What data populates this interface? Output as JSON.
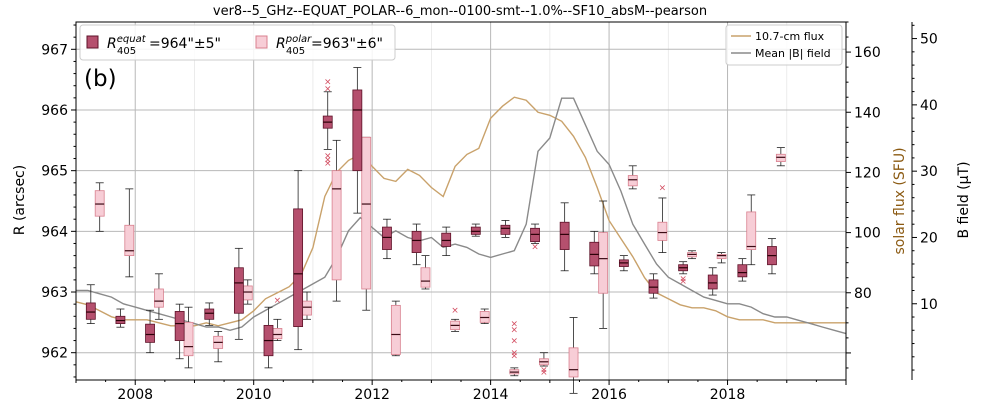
{
  "chart_data": {
    "type": "box",
    "title": "ver8--5_GHz--EQUAT_POLAR--6_mon--0100-smt--1.0%--SF10_absM--pearson",
    "panel_label": "(b)",
    "xlabel": "",
    "ylabel": "R (arcsec)",
    "ylabel_flux": "solar flux (SFU)",
    "ylabel_bfield": "B field (µT)",
    "xlim": [
      2007.0,
      2020.0
    ],
    "ylim": [
      961.55,
      967.45
    ],
    "flux_lim": [
      51.0,
      170.0
    ],
    "bfield_lim": [
      -1.5,
      52.5
    ],
    "x_ticks": [
      2008,
      2010,
      2012,
      2014,
      2016,
      2018
    ],
    "x_tick_labels": [
      "2008",
      "2010",
      "2012",
      "2014",
      "2016",
      "2018"
    ],
    "y_ticks": [
      962,
      963,
      964,
      965,
      966,
      967
    ],
    "y_tick_labels": [
      "962",
      "963",
      "964",
      "965",
      "966",
      "967"
    ],
    "flux_ticks": [
      80,
      100,
      120,
      140,
      160
    ],
    "flux_tick_labels": [
      "80",
      "100",
      "120",
      "140",
      "160"
    ],
    "bfield_ticks": [
      10,
      20,
      30,
      40,
      50
    ],
    "bfield_tick_labels": [
      "10",
      "20",
      "30",
      "40",
      "50"
    ],
    "legend_boxes": {
      "equat": {
        "prefix": "R",
        "super": "equat",
        "sub": "405",
        "value": "=964\"±5\""
      },
      "polar": {
        "prefix": "R",
        "super": "polar",
        "sub": "405",
        "value": "=963\"±6\""
      }
    },
    "legend_lines": [
      {
        "name": "10.7-cm flux",
        "color": "#c9a26b"
      },
      {
        "name": "Mean |B| field",
        "color": "#8a8a8a"
      }
    ],
    "colors": {
      "equat_fill": "#b5506e",
      "equat_edge": "#5e1228",
      "equat_median": "#2a0008",
      "polar_fill": "#f7cdd6",
      "polar_edge": "#d9808f",
      "polar_median": "#3a0a14",
      "flux_line": "#c9a26b",
      "bfield_line": "#8a8a8a",
      "flux_axis": "#8b5a12",
      "outlier": "#d24a5e"
    },
    "series_equat": [
      {
        "x": 2007.25,
        "whislo": 962.48,
        "q1": 962.55,
        "med": 962.67,
        "q3": 962.82,
        "whishi": 963.12,
        "fliers": []
      },
      {
        "x": 2007.75,
        "whislo": 962.42,
        "q1": 962.48,
        "med": 962.53,
        "q3": 962.6,
        "whishi": 962.72,
        "fliers": []
      },
      {
        "x": 2008.25,
        "whislo": 962.0,
        "q1": 962.17,
        "med": 962.3,
        "q3": 962.47,
        "whishi": 962.7,
        "fliers": []
      },
      {
        "x": 2008.75,
        "whislo": 961.9,
        "q1": 962.2,
        "med": 962.48,
        "q3": 962.68,
        "whishi": 962.8,
        "fliers": []
      },
      {
        "x": 2009.25,
        "whislo": 962.45,
        "q1": 962.55,
        "med": 962.65,
        "q3": 962.72,
        "whishi": 962.82,
        "fliers": []
      },
      {
        "x": 2009.75,
        "whislo": 962.22,
        "q1": 962.65,
        "med": 963.15,
        "q3": 963.4,
        "whishi": 963.72,
        "fliers": []
      },
      {
        "x": 2010.25,
        "whislo": 961.75,
        "q1": 961.95,
        "med": 962.2,
        "q3": 962.45,
        "whishi": 962.75,
        "fliers": []
      },
      {
        "x": 2010.75,
        "whislo": 962.05,
        "q1": 962.43,
        "med": 963.3,
        "q3": 964.37,
        "whishi": 965.0,
        "fliers": []
      },
      {
        "x": 2011.25,
        "whislo": 965.35,
        "q1": 965.7,
        "med": 965.8,
        "q3": 965.9,
        "whishi": 966.3,
        "fliers": [
          966.47,
          966.35,
          965.25,
          965.18,
          965.13
        ]
      },
      {
        "x": 2011.75,
        "whislo": 964.3,
        "q1": 965.0,
        "med": 966.0,
        "q3": 966.33,
        "whishi": 966.7,
        "fliers": []
      },
      {
        "x": 2012.25,
        "whislo": 963.55,
        "q1": 963.7,
        "med": 963.9,
        "q3": 964.07,
        "whishi": 964.2,
        "fliers": []
      },
      {
        "x": 2012.75,
        "whislo": 963.45,
        "q1": 963.65,
        "med": 963.85,
        "q3": 964.0,
        "whishi": 964.12,
        "fliers": []
      },
      {
        "x": 2013.25,
        "whislo": 963.6,
        "q1": 963.75,
        "med": 963.85,
        "q3": 963.97,
        "whishi": 964.07,
        "fliers": []
      },
      {
        "x": 2013.75,
        "whislo": 963.92,
        "q1": 963.95,
        "med": 964.0,
        "q3": 964.07,
        "whishi": 964.12,
        "fliers": []
      },
      {
        "x": 2014.25,
        "whislo": 963.9,
        "q1": 963.95,
        "med": 964.05,
        "q3": 964.1,
        "whishi": 964.18,
        "fliers": []
      },
      {
        "x": 2014.75,
        "whislo": 963.8,
        "q1": 963.83,
        "med": 963.95,
        "q3": 964.05,
        "whishi": 964.12,
        "fliers": [
          963.75
        ]
      },
      {
        "x": 2015.25,
        "whislo": 963.35,
        "q1": 963.7,
        "med": 963.95,
        "q3": 964.15,
        "whishi": 964.47,
        "fliers": []
      },
      {
        "x": 2015.75,
        "whislo": 963.3,
        "q1": 963.43,
        "med": 963.62,
        "q3": 963.82,
        "whishi": 964.0,
        "fliers": []
      },
      {
        "x": 2016.25,
        "whislo": 963.35,
        "q1": 963.42,
        "med": 963.48,
        "q3": 963.53,
        "whishi": 963.6,
        "fliers": []
      },
      {
        "x": 2016.75,
        "whislo": 962.9,
        "q1": 962.98,
        "med": 963.08,
        "q3": 963.2,
        "whishi": 963.3,
        "fliers": []
      },
      {
        "x": 2017.25,
        "whislo": 963.3,
        "q1": 963.35,
        "med": 963.4,
        "q3": 963.45,
        "whishi": 963.5,
        "fliers": [
          963.22,
          963.18
        ]
      },
      {
        "x": 2017.75,
        "whislo": 962.95,
        "q1": 963.05,
        "med": 963.15,
        "q3": 963.28,
        "whishi": 963.4,
        "fliers": []
      },
      {
        "x": 2018.25,
        "whislo": 963.18,
        "q1": 963.25,
        "med": 963.32,
        "q3": 963.45,
        "whishi": 963.55,
        "fliers": []
      },
      {
        "x": 2018.75,
        "whislo": 963.3,
        "q1": 963.45,
        "med": 963.6,
        "q3": 963.75,
        "whishi": 963.88,
        "fliers": []
      }
    ],
    "series_polar": [
      {
        "x": 2007.4,
        "whislo": 964.0,
        "q1": 964.25,
        "med": 964.45,
        "q3": 964.67,
        "whishi": 964.8,
        "fliers": []
      },
      {
        "x": 2007.9,
        "whislo": 963.25,
        "q1": 963.6,
        "med": 963.68,
        "q3": 964.1,
        "whishi": 964.7,
        "fliers": []
      },
      {
        "x": 2008.4,
        "whislo": 962.55,
        "q1": 962.75,
        "med": 962.85,
        "q3": 963.05,
        "whishi": 963.3,
        "fliers": []
      },
      {
        "x": 2008.9,
        "whislo": 961.75,
        "q1": 961.95,
        "med": 962.1,
        "q3": 962.5,
        "whishi": 962.75,
        "fliers": []
      },
      {
        "x": 2009.4,
        "whislo": 961.85,
        "q1": 962.07,
        "med": 962.17,
        "q3": 962.27,
        "whishi": 962.35,
        "fliers": []
      },
      {
        "x": 2009.9,
        "whislo": 962.8,
        "q1": 962.87,
        "med": 963.0,
        "q3": 963.1,
        "whishi": 963.2,
        "fliers": []
      },
      {
        "x": 2010.4,
        "whislo": 962.2,
        "q1": 962.23,
        "med": 962.3,
        "q3": 962.4,
        "whishi": 962.55,
        "fliers": [
          962.87
        ]
      },
      {
        "x": 2010.9,
        "whislo": 962.55,
        "q1": 962.62,
        "med": 962.75,
        "q3": 962.85,
        "whishi": 963.0,
        "fliers": []
      },
      {
        "x": 2011.4,
        "whislo": 962.85,
        "q1": 963.2,
        "med": 964.7,
        "q3": 965.0,
        "whishi": 965.5,
        "fliers": []
      },
      {
        "x": 2011.9,
        "whislo": 962.7,
        "q1": 963.05,
        "med": 964.45,
        "q3": 965.55,
        "whishi": 965.55,
        "fliers": []
      },
      {
        "x": 2012.4,
        "whislo": 961.95,
        "q1": 961.97,
        "med": 962.3,
        "q3": 962.78,
        "whishi": 962.85,
        "fliers": []
      },
      {
        "x": 2012.9,
        "whislo": 963.05,
        "q1": 963.08,
        "med": 963.18,
        "q3": 963.4,
        "whishi": 963.6,
        "fliers": []
      },
      {
        "x": 2013.4,
        "whislo": 962.35,
        "q1": 962.38,
        "med": 962.45,
        "q3": 962.52,
        "whishi": 962.55,
        "fliers": [
          962.7
        ]
      },
      {
        "x": 2013.9,
        "whislo": 962.48,
        "q1": 962.5,
        "med": 962.58,
        "q3": 962.68,
        "whishi": 962.72,
        "fliers": []
      },
      {
        "x": 2014.4,
        "whislo": 961.62,
        "q1": 961.65,
        "med": 961.68,
        "q3": 961.72,
        "whishi": 961.75,
        "fliers": [
          962.48,
          962.38,
          962.2,
          962.0,
          961.95
        ]
      },
      {
        "x": 2014.9,
        "whislo": 961.78,
        "q1": 961.8,
        "med": 961.85,
        "q3": 961.9,
        "whishi": 962.0,
        "fliers": [
          961.72,
          961.68
        ]
      },
      {
        "x": 2015.4,
        "whislo": 961.33,
        "q1": 961.6,
        "med": 961.72,
        "q3": 962.08,
        "whishi": 962.58,
        "fliers": []
      },
      {
        "x": 2015.9,
        "whislo": 962.4,
        "q1": 962.98,
        "med": 963.55,
        "q3": 963.98,
        "whishi": 964.5,
        "fliers": []
      },
      {
        "x": 2016.4,
        "whislo": 964.7,
        "q1": 964.75,
        "med": 964.85,
        "q3": 964.92,
        "whishi": 965.08,
        "fliers": []
      },
      {
        "x": 2016.9,
        "whislo": 963.65,
        "q1": 963.85,
        "med": 963.98,
        "q3": 964.15,
        "whishi": 964.55,
        "fliers": [
          964.72
        ]
      },
      {
        "x": 2017.4,
        "whislo": 963.55,
        "q1": 963.58,
        "med": 963.62,
        "q3": 963.65,
        "whishi": 963.68,
        "fliers": []
      },
      {
        "x": 2017.9,
        "whislo": 963.48,
        "q1": 963.55,
        "med": 963.6,
        "q3": 963.62,
        "whishi": 963.65,
        "fliers": []
      },
      {
        "x": 2018.4,
        "whislo": 963.45,
        "q1": 963.7,
        "med": 963.75,
        "q3": 964.32,
        "whishi": 964.6,
        "fliers": []
      },
      {
        "x": 2018.9,
        "whislo": 965.08,
        "q1": 965.15,
        "med": 965.22,
        "q3": 965.27,
        "whishi": 965.38,
        "fliers": []
      }
    ],
    "flux_series": {
      "name": "10.7-cm flux",
      "x": [
        2007.0,
        2007.2,
        2007.4,
        2007.6,
        2007.8,
        2008.0,
        2008.2,
        2008.4,
        2008.6,
        2008.8,
        2009.0,
        2009.2,
        2009.4,
        2009.6,
        2009.8,
        2010.0,
        2010.2,
        2010.4,
        2010.6,
        2010.8,
        2011.0,
        2011.2,
        2011.4,
        2011.6,
        2011.8,
        2012.0,
        2012.2,
        2012.4,
        2012.6,
        2012.8,
        2013.0,
        2013.2,
        2013.4,
        2013.6,
        2013.8,
        2014.0,
        2014.2,
        2014.4,
        2014.6,
        2014.8,
        2015.0,
        2015.2,
        2015.4,
        2015.6,
        2015.8,
        2016.0,
        2016.2,
        2016.4,
        2016.6,
        2016.8,
        2017.0,
        2017.2,
        2017.4,
        2017.6,
        2017.8,
        2018.0,
        2018.2,
        2018.4,
        2018.6,
        2018.8,
        2019.0,
        2019.2,
        2019.4,
        2019.6,
        2019.8,
        2020.0
      ],
      "values": [
        77,
        76,
        74,
        72,
        71,
        71,
        71,
        70,
        69,
        69,
        69,
        70,
        69,
        70,
        71,
        74,
        78,
        80,
        82,
        86,
        95,
        112,
        120,
        124,
        126,
        122,
        118,
        117,
        121,
        119,
        115,
        112,
        122,
        126,
        128,
        138,
        142,
        145,
        144,
        140,
        139,
        137,
        132,
        125,
        115,
        104,
        98,
        92,
        85,
        80,
        78,
        76,
        75,
        75,
        74,
        72,
        71,
        71,
        71,
        70,
        70,
        70,
        70,
        70,
        70,
        70
      ]
    },
    "bfield_series": {
      "name": "Mean |B| field",
      "x": [
        2007.0,
        2007.2,
        2007.4,
        2007.6,
        2007.8,
        2008.0,
        2008.2,
        2008.4,
        2008.6,
        2008.8,
        2009.0,
        2009.2,
        2009.4,
        2009.6,
        2009.8,
        2010.0,
        2010.2,
        2010.4,
        2010.6,
        2010.8,
        2011.0,
        2011.2,
        2011.4,
        2011.6,
        2011.8,
        2012.0,
        2012.2,
        2012.4,
        2012.6,
        2012.8,
        2013.0,
        2013.2,
        2013.4,
        2013.6,
        2013.8,
        2014.0,
        2014.2,
        2014.4,
        2014.6,
        2014.8,
        2015.0,
        2015.2,
        2015.4,
        2015.6,
        2015.8,
        2016.0,
        2016.2,
        2016.4,
        2016.6,
        2016.8,
        2017.0,
        2017.2,
        2017.4,
        2017.6,
        2017.8,
        2018.0,
        2018.2,
        2018.4,
        2018.6,
        2018.8,
        2019.0,
        2019.2,
        2019.4,
        2019.6,
        2019.8,
        2020.0
      ],
      "values": [
        12,
        12,
        11.5,
        11,
        10,
        9.5,
        9,
        8.5,
        8,
        7.5,
        7,
        6.5,
        6.5,
        6,
        6.5,
        8,
        9,
        10,
        11,
        12,
        13,
        14,
        17,
        21,
        23,
        21.5,
        20,
        21,
        20,
        19.5,
        20,
        18.5,
        19,
        18.5,
        17.5,
        17,
        17.5,
        18,
        22,
        33,
        35,
        41,
        41,
        37,
        33,
        31,
        27,
        22,
        19,
        16,
        14,
        13,
        12,
        11,
        10.5,
        10,
        10,
        9.5,
        8.5,
        8,
        8,
        7.5,
        7,
        6.5,
        6,
        5.5
      ]
    }
  }
}
